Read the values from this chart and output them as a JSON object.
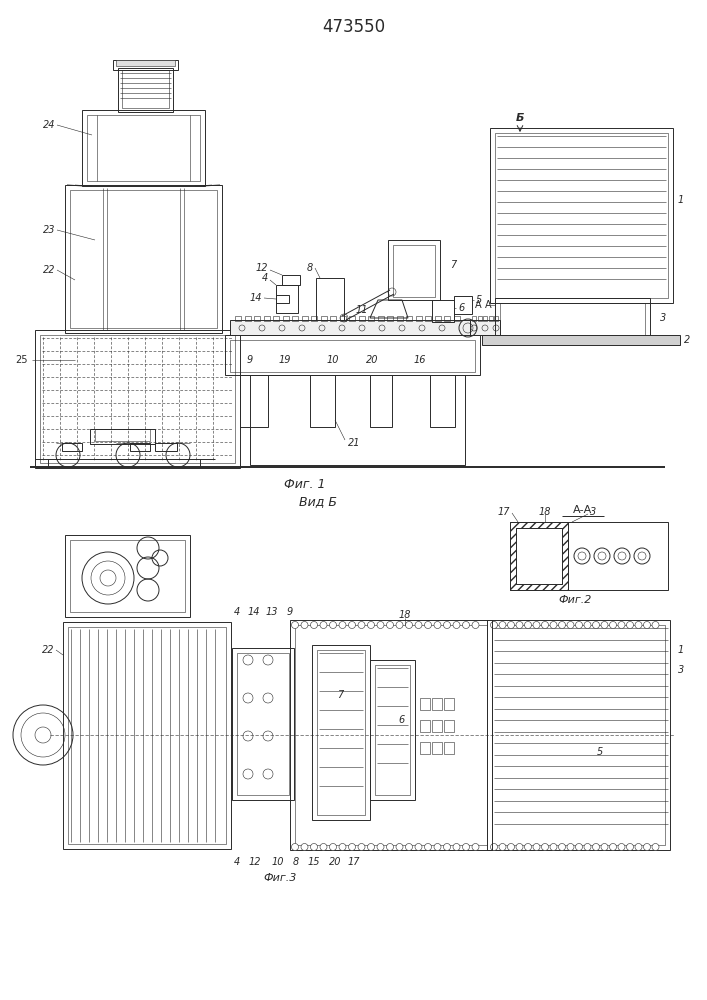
{
  "title": "473550",
  "fig1_caption": "Фиг. 1",
  "fig2_caption": "Фиг.2",
  "fig3_caption": "Фиг.3",
  "vid_b_caption": "Вид Б",
  "aa_caption": "А-А",
  "bg_color": "#ffffff",
  "lc": "#2a2a2a",
  "lw": 0.7,
  "tlw": 0.4,
  "thklw": 1.4
}
